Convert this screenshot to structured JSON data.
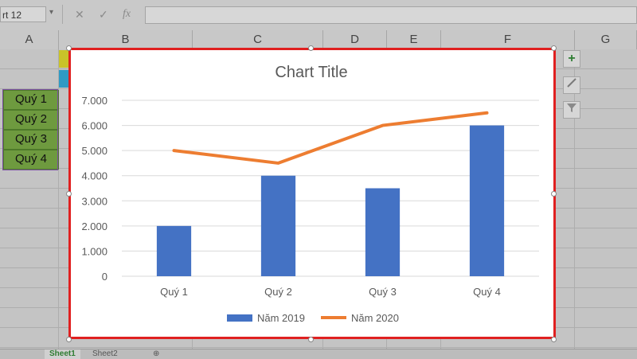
{
  "formula_bar": {
    "name_box": "rt 12",
    "cancel_icon": "✕",
    "enter_icon": "✓",
    "fx_label": "fx",
    "formula": ""
  },
  "columns": [
    "A",
    "B",
    "C",
    "D",
    "E",
    "F",
    "G"
  ],
  "cells": {
    "quy_labels": [
      "Quý 1",
      "Quý 2",
      "Quý 3",
      "Quý 4"
    ]
  },
  "sheet_tabs": {
    "tabs": [
      "Sheet1",
      "Sheet2"
    ],
    "active": "Sheet1",
    "add_icon": "⊕"
  },
  "side_buttons": {
    "chart_elements_icon": "plus-icon",
    "chart_styles_icon": "brush-icon",
    "chart_filters_icon": "filter-icon"
  },
  "colors": {
    "bar": "#4472c4",
    "line": "#ed7d31",
    "selection_border": "#e02020",
    "quy_fill": "#6e9a3f"
  },
  "chart_data": {
    "type": "bar",
    "title": "Chart Title",
    "categories": [
      "Quý 1",
      "Quý 2",
      "Quý 3",
      "Quý 4"
    ],
    "series": [
      {
        "name": "Năm 2019",
        "type": "bar",
        "values": [
          2000,
          4000,
          3500,
          6000
        ]
      },
      {
        "name": "Năm 2020",
        "type": "line",
        "values": [
          5000,
          4500,
          6000,
          6500
        ]
      }
    ],
    "ylim": [
      0,
      7000
    ],
    "yticks": [
      "0",
      "1.000",
      "2.000",
      "3.000",
      "4.000",
      "5.000",
      "6.000",
      "7.000"
    ],
    "grid": true,
    "legend": "bottom"
  }
}
